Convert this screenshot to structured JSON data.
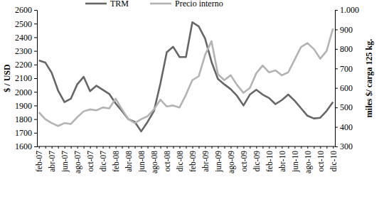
{
  "chart_data": {
    "type": "line",
    "categories": [
      "feb-07",
      null,
      "abr-07",
      null,
      "jun-07",
      null,
      "ago-07",
      null,
      "oct-07",
      null,
      "dic-07",
      null,
      "feb-08",
      null,
      "abr-08",
      null,
      "jun-08",
      null,
      "ago-08",
      null,
      "oct-08",
      null,
      "dic-08",
      null,
      "feb-09",
      null,
      "abr-09",
      null,
      "jun-09",
      null,
      "ago-09",
      null,
      "oct-09",
      null,
      "dic-09",
      null,
      "feb-10",
      null,
      "abr-10",
      null,
      "jun-10",
      null,
      "ago-10",
      null,
      "oct-10",
      null,
      "dic-10"
    ],
    "series": [
      {
        "name": "TRM",
        "color": "#666666",
        "values": [
          2230,
          2215,
          2140,
          2010,
          1925,
          1950,
          2055,
          2110,
          2005,
          2045,
          2015,
          1985,
          1915,
          1860,
          1800,
          1780,
          1710,
          1780,
          1860,
          2060,
          2290,
          2330,
          2255,
          2255,
          2510,
          2480,
          2390,
          2220,
          2095,
          2055,
          2020,
          1970,
          1900,
          1980,
          2015,
          1980,
          1955,
          1910,
          1940,
          1980,
          1935,
          1880,
          1825,
          1805,
          1810,
          1860,
          1925
        ]
      },
      {
        "name": "Precio interno",
        "color": "#b3b3b3",
        "axis": "y2",
        "values": [
          475,
          440,
          420,
          405,
          420,
          415,
          450,
          480,
          490,
          485,
          500,
          495,
          545,
          490,
          440,
          420,
          440,
          455,
          490,
          540,
          505,
          510,
          500,
          565,
          640,
          660,
          770,
          840,
          670,
          640,
          665,
          615,
          575,
          600,
          675,
          715,
          680,
          690,
          665,
          680,
          745,
          810,
          830,
          800,
          750,
          790,
          905
        ]
      }
    ],
    "y_label": "$ / USD",
    "y2_label": "miles $/ carga 125 kg.",
    "ylim": [
      1600,
      2600
    ],
    "yticks": [
      1600,
      1700,
      1800,
      1900,
      2000,
      2100,
      2200,
      2300,
      2400,
      2500,
      2600
    ],
    "y2lim": [
      300,
      1000
    ],
    "y2ticks": [
      300,
      400,
      500,
      600,
      700,
      800,
      900,
      {
        "value": 1000,
        "label": "1.000"
      }
    ],
    "legend": "top",
    "grid": false
  }
}
